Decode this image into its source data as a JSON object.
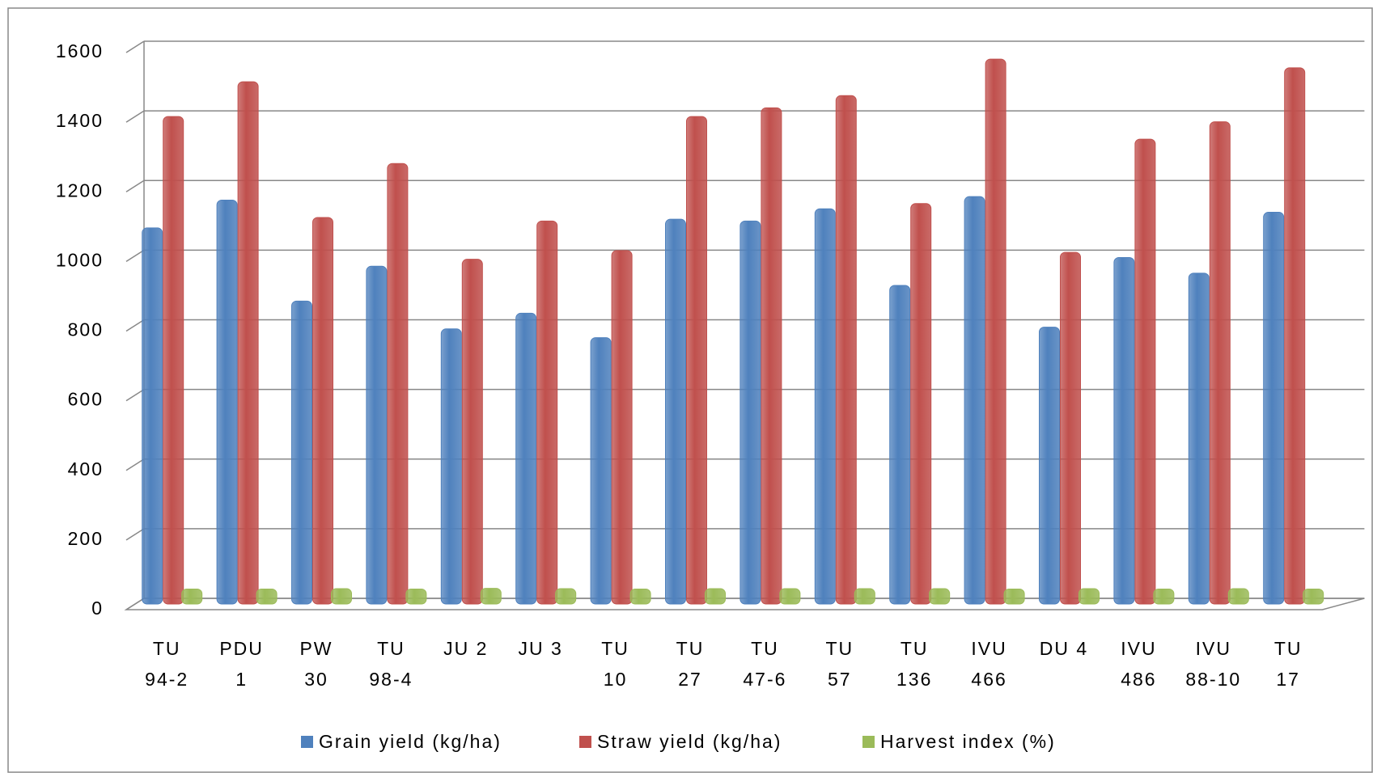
{
  "chart_data": {
    "type": "bar",
    "categories": [
      [
        "TU",
        "94-2"
      ],
      [
        "PDU",
        "1"
      ],
      [
        "PW",
        "30"
      ],
      [
        "TU",
        "98-4"
      ],
      [
        "JU 2"
      ],
      [
        "JU 3"
      ],
      [
        "TU",
        "10"
      ],
      [
        "TU",
        "27"
      ],
      [
        "TU",
        "47-6"
      ],
      [
        "TU",
        "57"
      ],
      [
        "TU",
        "136"
      ],
      [
        "IVU",
        "466"
      ],
      [
        "DU 4"
      ],
      [
        "IVU",
        "486"
      ],
      [
        "IVU",
        "88-10"
      ],
      [
        "TU",
        "17"
      ]
    ],
    "series": [
      {
        "name": "Grain yield (kg/ha)",
        "color": "#4f81bd",
        "values": [
          1080,
          1160,
          870,
          970,
          790,
          835,
          765,
          1105,
          1100,
          1135,
          915,
          1170,
          795,
          995,
          950,
          1125
        ]
      },
      {
        "name": "Straw yield (kg/ha)",
        "color": "#c0504d",
        "values": [
          1400,
          1500,
          1110,
          1265,
          990,
          1100,
          1015,
          1400,
          1425,
          1460,
          1150,
          1565,
          1010,
          1335,
          1385,
          1540
        ]
      },
      {
        "name": "Harvest index (%)",
        "color": "#9bbb59",
        "values": [
          43,
          43,
          44,
          43,
          45,
          44,
          43,
          44,
          44,
          44,
          44,
          43,
          44,
          43,
          44,
          43
        ]
      }
    ],
    "ylim": [
      0,
      1600
    ],
    "yticks": [
      0,
      200,
      400,
      600,
      800,
      1000,
      1200,
      1400,
      1600
    ],
    "grid": true,
    "legend": "bottom"
  }
}
